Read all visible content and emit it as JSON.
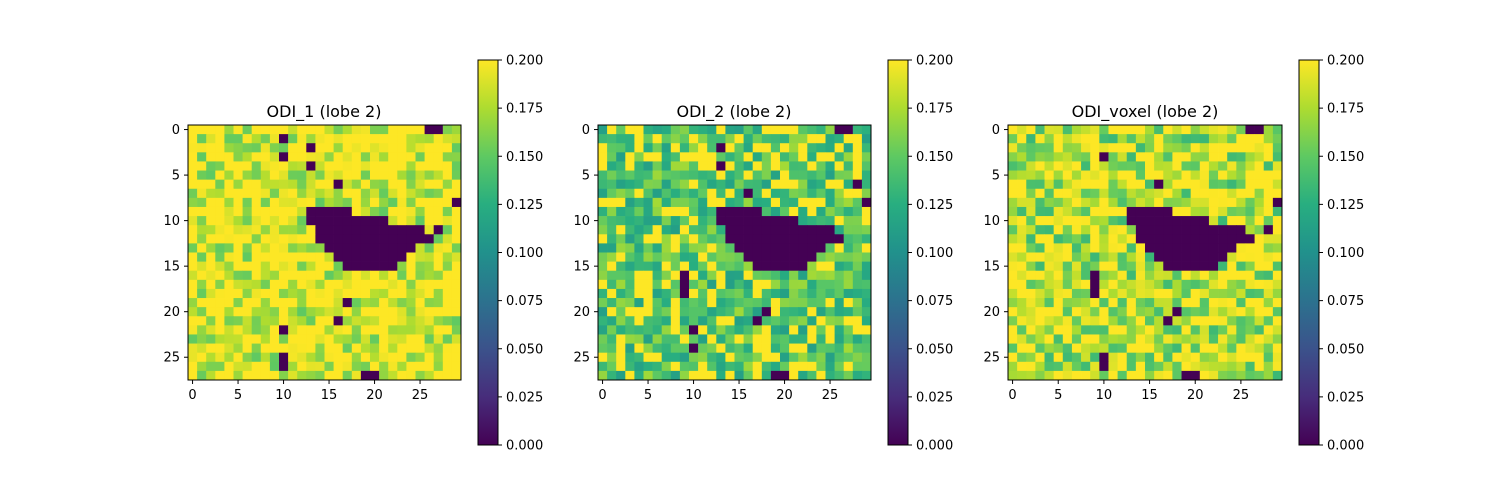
{
  "figure": {
    "background": "#ffffff"
  },
  "chart_data": [
    {
      "type": "heatmap",
      "title": "ODI_1 (lobe 2)",
      "rows": 28,
      "cols": 30,
      "xticks": [
        0,
        5,
        10,
        15,
        20,
        25
      ],
      "yticks": [
        0,
        5,
        10,
        15,
        20,
        25
      ],
      "clim": [
        0,
        0.2
      ],
      "colorbar_ticks": [
        "0.000",
        "0.025",
        "0.050",
        "0.075",
        "0.100",
        "0.125",
        "0.150",
        "0.175",
        "0.200"
      ],
      "fill_level": 0.185,
      "fill_spread": 0.035,
      "zero_regions": [
        [
          9,
          13,
          17
        ],
        [
          10,
          13,
          21
        ],
        [
          11,
          14,
          25
        ],
        [
          12,
          14,
          26
        ],
        [
          13,
          15,
          24
        ],
        [
          14,
          16,
          23
        ],
        [
          15,
          17,
          22
        ],
        [
          1,
          10,
          10
        ],
        [
          3,
          10,
          10
        ],
        [
          2,
          13,
          13
        ],
        [
          4,
          13,
          13
        ],
        [
          6,
          16,
          16
        ],
        [
          8,
          29,
          29
        ],
        [
          21,
          16,
          16
        ],
        [
          19,
          17,
          17
        ],
        [
          22,
          10,
          10
        ],
        [
          25,
          10,
          10
        ],
        [
          26,
          10,
          10
        ],
        [
          27,
          19,
          20
        ],
        [
          0,
          26,
          27
        ],
        [
          11,
          27,
          27
        ],
        [
          12,
          26,
          26
        ]
      ]
    },
    {
      "type": "heatmap",
      "title": "ODI_2 (lobe 2)",
      "rows": 28,
      "cols": 30,
      "xticks": [
        0,
        5,
        10,
        15,
        20,
        25
      ],
      "yticks": [
        0,
        5,
        10,
        15,
        20,
        25
      ],
      "clim": [
        0,
        0.2
      ],
      "colorbar_ticks": [
        "0.000",
        "0.025",
        "0.050",
        "0.075",
        "0.100",
        "0.125",
        "0.150",
        "0.175",
        "0.200"
      ],
      "fill_level": 0.142,
      "fill_spread": 0.03,
      "zero_regions": [
        [
          9,
          13,
          17
        ],
        [
          10,
          13,
          21
        ],
        [
          11,
          14,
          25
        ],
        [
          12,
          14,
          26
        ],
        [
          13,
          15,
          24
        ],
        [
          14,
          16,
          23
        ],
        [
          15,
          17,
          22
        ],
        [
          16,
          9,
          9
        ],
        [
          17,
          9,
          9
        ],
        [
          18,
          9,
          9
        ],
        [
          22,
          10,
          10
        ],
        [
          24,
          10,
          10
        ],
        [
          7,
          16,
          16
        ],
        [
          8,
          29,
          29
        ],
        [
          20,
          18,
          18
        ],
        [
          21,
          17,
          17
        ],
        [
          27,
          19,
          20
        ],
        [
          0,
          26,
          27
        ],
        [
          4,
          13,
          13
        ],
        [
          2,
          13,
          13
        ],
        [
          6,
          28,
          28
        ]
      ]
    },
    {
      "type": "heatmap",
      "title": "ODI_voxel (lobe 2)",
      "rows": 28,
      "cols": 30,
      "xticks": [
        0,
        5,
        10,
        15,
        20,
        25
      ],
      "yticks": [
        0,
        5,
        10,
        15,
        20,
        25
      ],
      "clim": [
        0,
        0.2
      ],
      "colorbar_ticks": [
        "0.000",
        "0.025",
        "0.050",
        "0.075",
        "0.100",
        "0.125",
        "0.150",
        "0.175",
        "0.200"
      ],
      "fill_level": 0.168,
      "fill_spread": 0.035,
      "zero_regions": [
        [
          9,
          13,
          17
        ],
        [
          10,
          13,
          21
        ],
        [
          11,
          14,
          25
        ],
        [
          12,
          14,
          26
        ],
        [
          13,
          15,
          24
        ],
        [
          14,
          16,
          23
        ],
        [
          15,
          17,
          22
        ],
        [
          16,
          9,
          9
        ],
        [
          17,
          9,
          9
        ],
        [
          18,
          9,
          9
        ],
        [
          3,
          10,
          10
        ],
        [
          25,
          10,
          10
        ],
        [
          26,
          10,
          10
        ],
        [
          6,
          16,
          16
        ],
        [
          8,
          29,
          29
        ],
        [
          20,
          18,
          18
        ],
        [
          21,
          17,
          17
        ],
        [
          27,
          19,
          20
        ],
        [
          0,
          26,
          27
        ],
        [
          11,
          28,
          28
        ]
      ]
    }
  ]
}
